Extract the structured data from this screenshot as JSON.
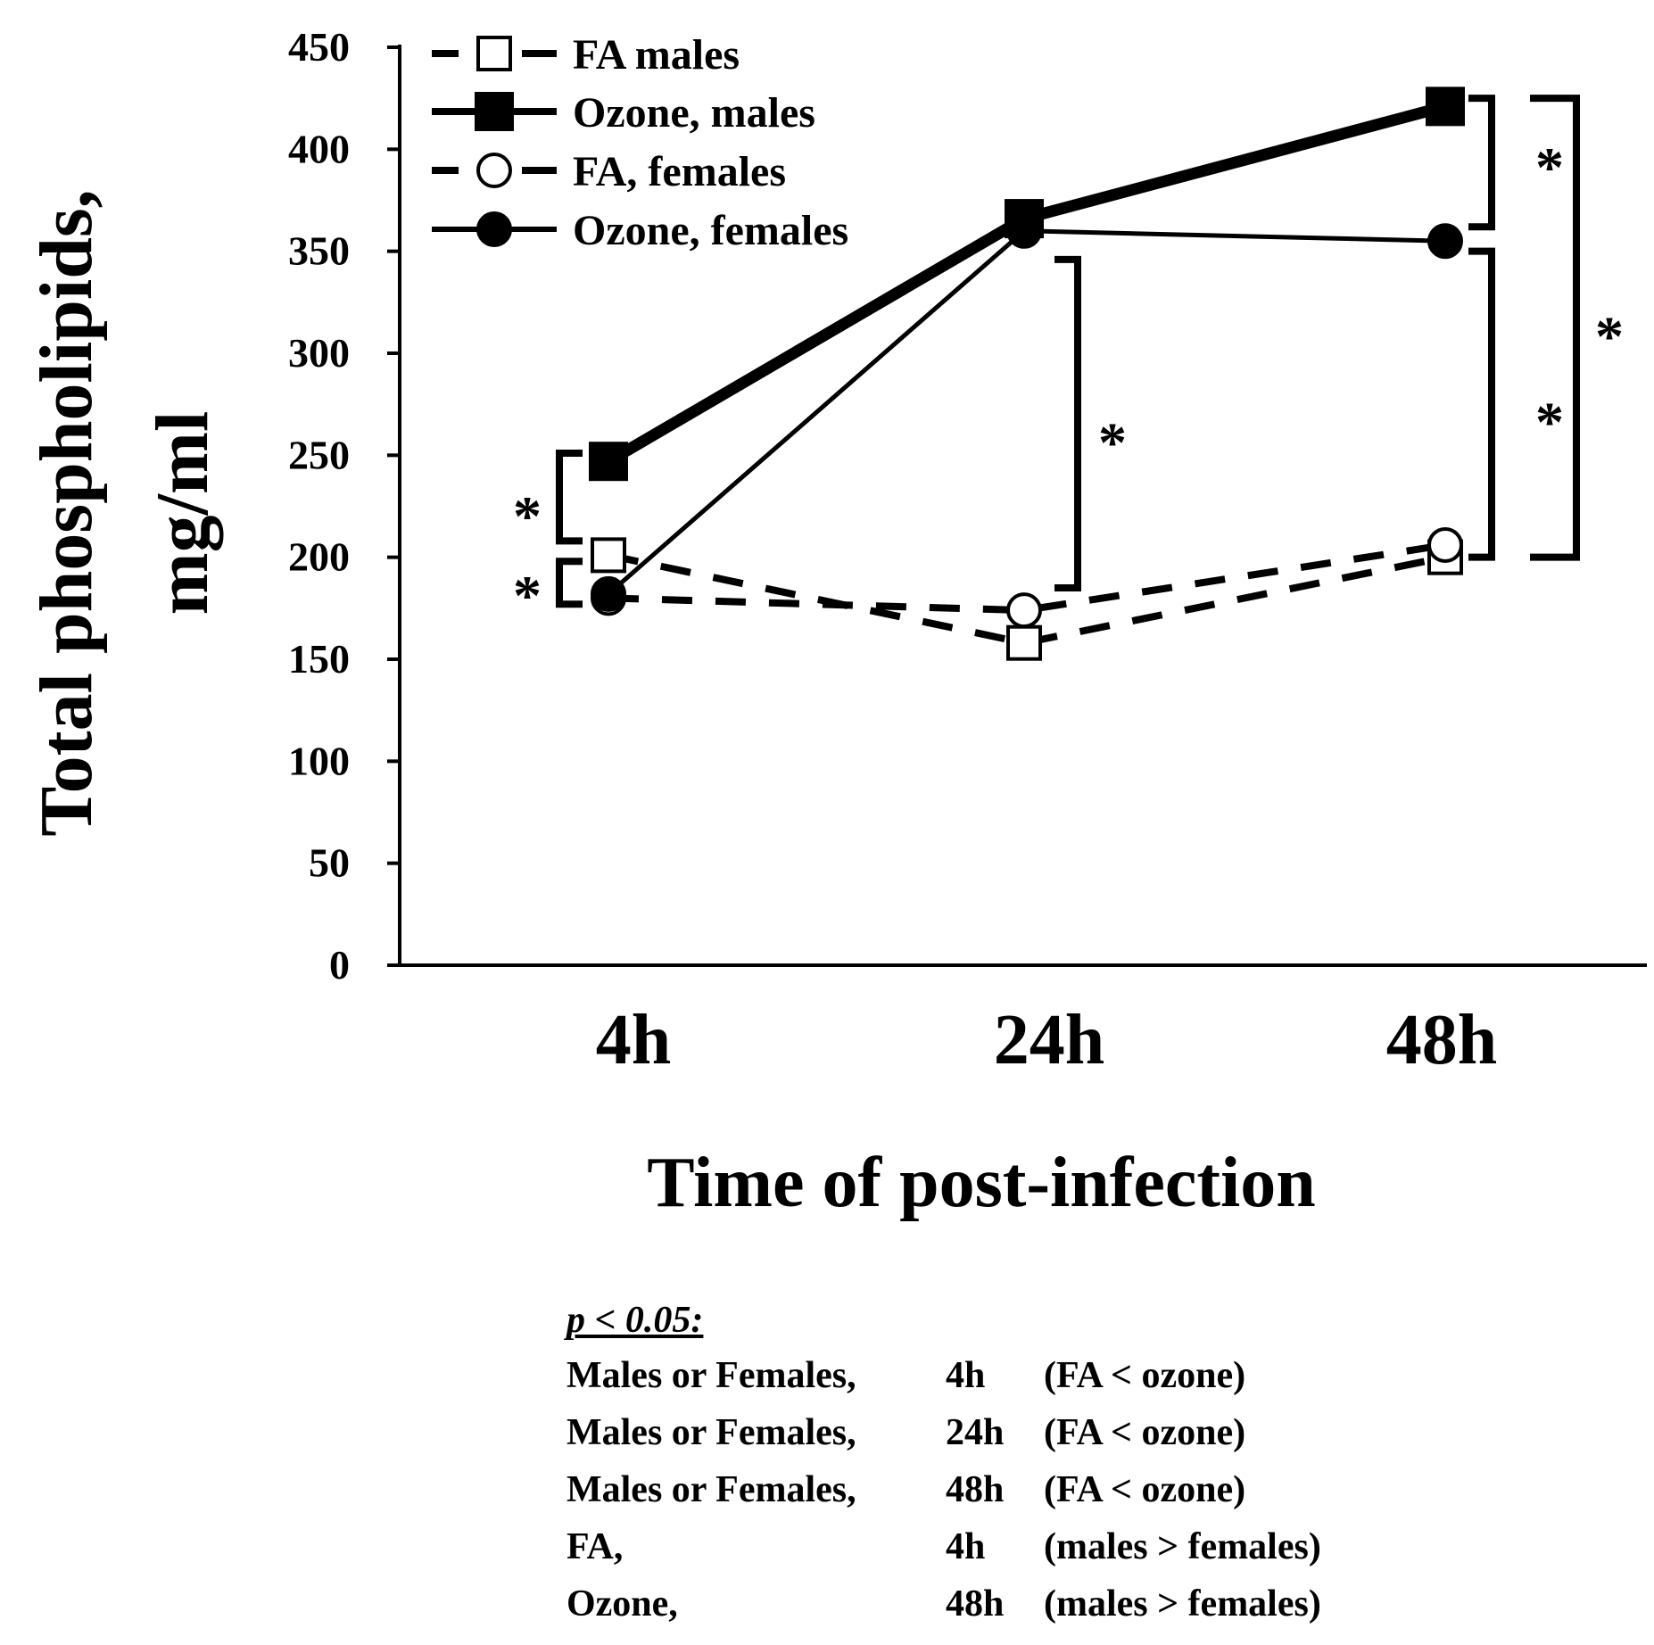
{
  "chart_data": {
    "type": "line",
    "title": "",
    "xlabel": "Time of post-infection",
    "ylabel_lines": [
      "Total phospholipids,",
      "mg/ml"
    ],
    "categories": [
      "4h",
      "24h",
      "48h"
    ],
    "ylim": [
      0,
      450
    ],
    "yticks": [
      "0",
      "50",
      "100",
      "150",
      "200",
      "250",
      "300",
      "350",
      "400",
      "450"
    ],
    "grid": false,
    "legend_position": "top-left",
    "series": [
      {
        "name": "FA males",
        "values": [
          201,
          158,
          200
        ],
        "line": "dashed",
        "marker": "open-square",
        "color": "#000000"
      },
      {
        "name": "Ozone, males",
        "values": [
          247,
          366,
          421
        ],
        "line": "solid-thick",
        "marker": "filled-square",
        "color": "#000000"
      },
      {
        "name": "FA, females",
        "values": [
          180,
          174,
          206
        ],
        "line": "dashed",
        "marker": "open-circle",
        "color": "#000000"
      },
      {
        "name": "Ozone, females",
        "values": [
          182,
          360,
          355
        ],
        "line": "solid",
        "marker": "filled-circle",
        "color": "#000000"
      }
    ],
    "significance_marker": "*"
  },
  "notes": {
    "header": "p < 0.05:",
    "rows": [
      {
        "group": "Males or Females,",
        "time": "4h",
        "comparison": "(FA  < ozone)"
      },
      {
        "group": "Males or Females,",
        "time": "24h",
        "comparison": "(FA  < ozone)"
      },
      {
        "group": "Males or Females,",
        "time": "48h",
        "comparison": "(FA  < ozone)"
      },
      {
        "group": "FA,",
        "time": "4h",
        "comparison": "(males > females)"
      },
      {
        "group": "Ozone,",
        "time": "48h",
        "comparison": "(males > females)"
      }
    ]
  }
}
